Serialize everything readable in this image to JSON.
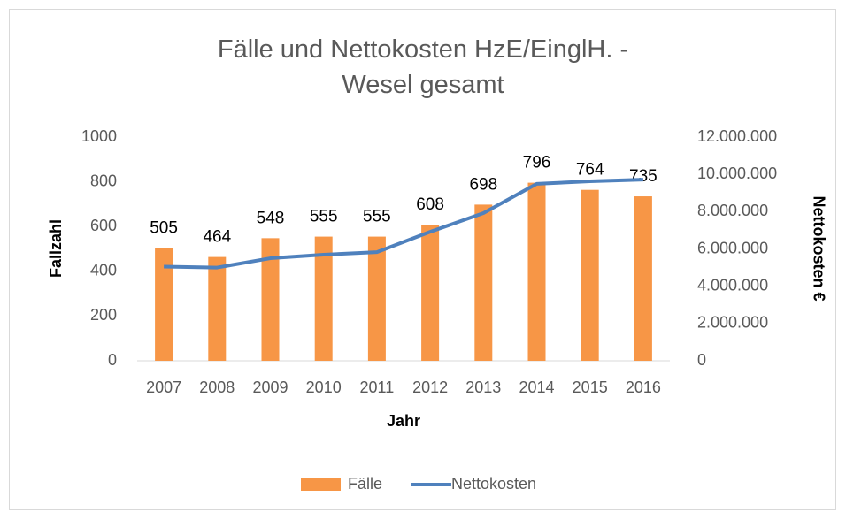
{
  "chart_data": {
    "type": "bar_line",
    "title": "Fälle und Nettokosten HzE/EinglH. - Wesel gesamt",
    "x_label": "Jahr",
    "y_label": "Fallzahl",
    "y2_label": "Nettokosten €",
    "categories": [
      "2007",
      "2008",
      "2009",
      "2010",
      "2011",
      "2012",
      "2013",
      "2014",
      "2015",
      "2016"
    ],
    "series": [
      {
        "name": "Fälle",
        "color": "#f79646",
        "type": "bar",
        "values": [
          505,
          464,
          548,
          555,
          555,
          608,
          698,
          796,
          764,
          735
        ]
      },
      {
        "name": "Nettokosten",
        "color": "#4f81bd",
        "type": "line",
        "axis": "y2",
        "values": [
          5050000,
          5000000,
          5500000,
          5690000,
          5830000,
          6920000,
          7920000,
          9490000,
          9630000,
          9720000
        ]
      }
    ],
    "ylim": [
      0,
      1000
    ],
    "yticks": [
      0,
      200,
      400,
      600,
      800,
      1000
    ],
    "y2lim": [
      0,
      12000000
    ],
    "y2ticks": [
      0,
      {
        "value": 2000000,
        "label": "2.000.000"
      },
      {
        "value": 4000000,
        "label": "4.000.000"
      },
      {
        "value": 6000000,
        "label": "6.000.000"
      },
      {
        "value": 8000000,
        "label": "8.000.000"
      },
      {
        "value": 10000000,
        "label": "10.000.000"
      },
      {
        "value": 12000000,
        "label": "12.000.000"
      }
    ],
    "legend": "bottom"
  }
}
